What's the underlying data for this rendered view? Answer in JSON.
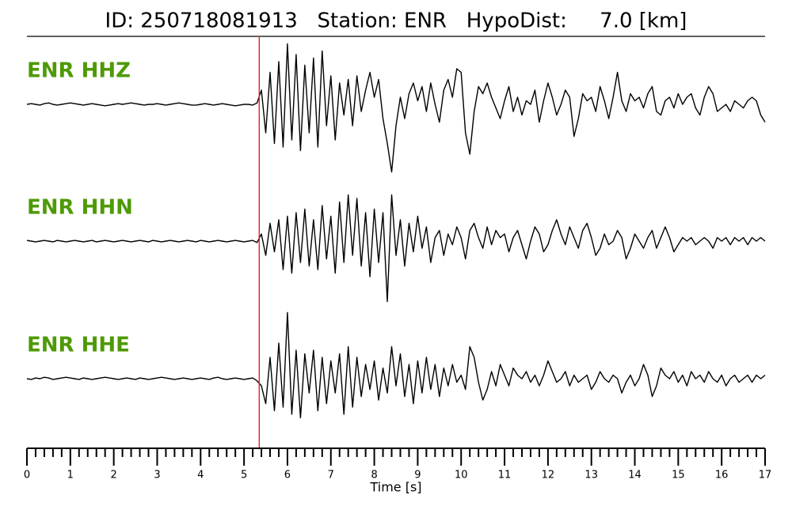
{
  "chart_data": {
    "type": "seismogram",
    "title": "ID: 250718081913   Station: ENR   HypoDist:     7.0 [km]",
    "x_label": "Time [s]",
    "pick_time": 5.35,
    "pick_color": "#e8221d",
    "label_color": "#4e9a06",
    "trace_color": "#000000",
    "xlim": [
      0,
      17
    ],
    "ylim": [
      -100,
      100
    ],
    "xticks": [
      0,
      1,
      2,
      3,
      4,
      5,
      6,
      7,
      8,
      9,
      10,
      11,
      12,
      13,
      14,
      15,
      16,
      17
    ],
    "xminorticks": [
      0.2,
      0.4,
      0.6,
      0.8,
      1.2,
      1.4,
      1.6,
      1.8,
      2.2,
      2.4,
      2.6,
      2.8,
      3.2,
      3.4,
      3.6,
      3.8,
      4.2,
      4.4,
      4.6,
      4.8,
      5.2,
      5.4,
      5.6,
      5.8,
      6.2,
      6.4,
      6.6,
      6.8,
      7.2,
      7.4,
      7.6,
      7.8,
      8.2,
      8.4,
      8.6,
      8.8,
      9.2,
      9.4,
      9.6,
      9.8,
      10.2,
      10.4,
      10.6,
      10.8,
      11.2,
      11.4,
      11.6,
      11.8,
      12.2,
      12.4,
      12.6,
      12.8,
      13.2,
      13.4,
      13.6,
      13.8,
      14.2,
      14.4,
      14.6,
      14.8,
      15.2,
      15.4,
      15.6,
      15.8,
      16.2,
      16.4,
      16.6,
      16.8
    ],
    "x": [
      0,
      0.1,
      0.2,
      0.3,
      0.4,
      0.5,
      0.6,
      0.7,
      0.8,
      0.9,
      1,
      1.1,
      1.2,
      1.3,
      1.4,
      1.5,
      1.6,
      1.7,
      1.8,
      1.9,
      2,
      2.1,
      2.2,
      2.3,
      2.4,
      2.5,
      2.6,
      2.7,
      2.8,
      2.9,
      3,
      3.1,
      3.2,
      3.3,
      3.4,
      3.5,
      3.6,
      3.7,
      3.8,
      3.9,
      4,
      4.1,
      4.2,
      4.3,
      4.4,
      4.5,
      4.6,
      4.7,
      4.8,
      4.9,
      5,
      5.1,
      5.2,
      5.3,
      5.4,
      5.5,
      5.6,
      5.7,
      5.8,
      5.9,
      6,
      6.1,
      6.2,
      6.3,
      6.4,
      6.5,
      6.6,
      6.7,
      6.8,
      6.9,
      7,
      7.1,
      7.2,
      7.3,
      7.4,
      7.5,
      7.6,
      7.7,
      7.8,
      7.9,
      8,
      8.1,
      8.2,
      8.3,
      8.4,
      8.5,
      8.6,
      8.7,
      8.8,
      8.9,
      9,
      9.1,
      9.2,
      9.3,
      9.4,
      9.5,
      9.6,
      9.7,
      9.8,
      9.9,
      10,
      10.1,
      10.2,
      10.3,
      10.4,
      10.5,
      10.6,
      10.7,
      10.8,
      10.9,
      11,
      11.1,
      11.2,
      11.3,
      11.4,
      11.5,
      11.6,
      11.7,
      11.8,
      11.9,
      12,
      12.1,
      12.2,
      12.3,
      12.4,
      12.5,
      12.6,
      12.7,
      12.8,
      12.9,
      13,
      13.1,
      13.2,
      13.3,
      13.4,
      13.5,
      13.6,
      13.7,
      13.8,
      13.9,
      14,
      14.1,
      14.2,
      14.3,
      14.4,
      14.5,
      14.6,
      14.7,
      14.8,
      14.9,
      15,
      15.1,
      15.2,
      15.3,
      15.4,
      15.5,
      15.6,
      15.7,
      15.8,
      15.9,
      16,
      16.1,
      16.2,
      16.3,
      16.4,
      16.5,
      16.6,
      16.7,
      16.8,
      16.9,
      17
    ],
    "series": [
      {
        "name": "ENR HHZ",
        "values": [
          0,
          1,
          0,
          -1,
          1,
          2,
          0,
          -1,
          0,
          1,
          2,
          1,
          0,
          -1,
          0,
          1,
          0,
          -1,
          -2,
          -1,
          0,
          1,
          0,
          1,
          2,
          1,
          0,
          -1,
          0,
          0,
          1,
          0,
          -1,
          0,
          1,
          2,
          1,
          0,
          -1,
          -1,
          0,
          1,
          0,
          -1,
          0,
          1,
          0,
          -1,
          -2,
          -1,
          0,
          0,
          -1,
          2,
          20,
          -40,
          45,
          -55,
          60,
          -60,
          85,
          -50,
          70,
          -65,
          55,
          -40,
          65,
          -60,
          75,
          -30,
          40,
          -50,
          30,
          -15,
          35,
          -30,
          40,
          -10,
          20,
          45,
          10,
          35,
          -20,
          -55,
          -95,
          -30,
          10,
          -20,
          15,
          30,
          5,
          25,
          -10,
          30,
          0,
          -25,
          20,
          35,
          10,
          50,
          45,
          -40,
          -70,
          -10,
          25,
          15,
          30,
          10,
          -5,
          -20,
          5,
          25,
          -10,
          10,
          -15,
          5,
          0,
          20,
          -25,
          5,
          30,
          10,
          -15,
          0,
          20,
          10,
          -45,
          -20,
          15,
          5,
          10,
          -10,
          25,
          5,
          -20,
          10,
          45,
          5,
          -10,
          15,
          5,
          10,
          -5,
          15,
          25,
          -10,
          -15,
          5,
          10,
          -5,
          15,
          0,
          10,
          15,
          -5,
          -15,
          10,
          25,
          15,
          -10,
          -5,
          0,
          -10,
          5,
          0,
          -5,
          5,
          10,
          5,
          -15,
          -25
        ]
      },
      {
        "name": "ENR HHN",
        "values": [
          1,
          0,
          -1,
          0,
          1,
          0,
          -1,
          1,
          0,
          -1,
          0,
          1,
          0,
          -1,
          0,
          1,
          -1,
          0,
          1,
          0,
          -1,
          0,
          1,
          0,
          -1,
          0,
          1,
          0,
          -1,
          1,
          0,
          -1,
          0,
          1,
          0,
          -1,
          0,
          1,
          0,
          -1,
          1,
          0,
          -1,
          0,
          1,
          0,
          -1,
          0,
          1,
          0,
          -1,
          0,
          1,
          -2,
          10,
          -20,
          25,
          -15,
          30,
          -40,
          35,
          -45,
          40,
          -30,
          45,
          -35,
          30,
          -40,
          50,
          -25,
          35,
          -45,
          55,
          -30,
          65,
          -20,
          60,
          -35,
          40,
          -50,
          45,
          -30,
          40,
          -85,
          65,
          -20,
          30,
          -35,
          25,
          -15,
          35,
          -10,
          20,
          -30,
          5,
          15,
          -20,
          10,
          -5,
          20,
          5,
          -25,
          15,
          25,
          5,
          -10,
          20,
          -5,
          15,
          5,
          10,
          -15,
          5,
          15,
          -5,
          -25,
          0,
          20,
          10,
          -15,
          -5,
          15,
          30,
          10,
          -5,
          20,
          5,
          -10,
          15,
          25,
          5,
          -20,
          -10,
          10,
          -5,
          0,
          15,
          5,
          -25,
          -10,
          10,
          0,
          -10,
          5,
          15,
          -10,
          5,
          20,
          5,
          -15,
          -5,
          5,
          0,
          5,
          -5,
          0,
          5,
          0,
          -10,
          5,
          0,
          5,
          -5,
          5,
          0,
          5,
          -5,
          5,
          0,
          5,
          0
        ]
      },
      {
        "name": "ENR HHE",
        "values": [
          0,
          -1,
          1,
          0,
          2,
          1,
          -1,
          0,
          1,
          2,
          1,
          0,
          -1,
          1,
          0,
          -1,
          0,
          1,
          2,
          1,
          0,
          -1,
          0,
          1,
          0,
          -1,
          1,
          0,
          -1,
          0,
          1,
          2,
          1,
          0,
          -1,
          0,
          1,
          0,
          -1,
          0,
          1,
          0,
          -1,
          1,
          2,
          0,
          -1,
          0,
          1,
          0,
          -1,
          0,
          1,
          -3,
          -10,
          -35,
          30,
          -45,
          50,
          -40,
          93,
          -50,
          40,
          -55,
          35,
          -20,
          40,
          -45,
          30,
          -35,
          25,
          -20,
          35,
          -50,
          45,
          -40,
          30,
          -25,
          20,
          -15,
          25,
          -30,
          15,
          -20,
          45,
          -10,
          35,
          -25,
          20,
          -35,
          25,
          -20,
          30,
          -15,
          20,
          -25,
          15,
          -10,
          20,
          -5,
          5,
          -15,
          45,
          30,
          -5,
          -30,
          -15,
          10,
          -10,
          20,
          5,
          -10,
          15,
          5,
          0,
          10,
          -5,
          5,
          -10,
          5,
          25,
          10,
          -5,
          0,
          10,
          -10,
          5,
          -5,
          0,
          5,
          -15,
          -5,
          10,
          0,
          -5,
          5,
          0,
          -20,
          -5,
          5,
          -10,
          0,
          20,
          5,
          -25,
          -10,
          15,
          5,
          0,
          10,
          -5,
          5,
          -10,
          10,
          0,
          5,
          -5,
          10,
          0,
          -5,
          5,
          -10,
          0,
          5,
          -5,
          0,
          5,
          -5,
          5,
          0,
          5
        ]
      }
    ]
  }
}
